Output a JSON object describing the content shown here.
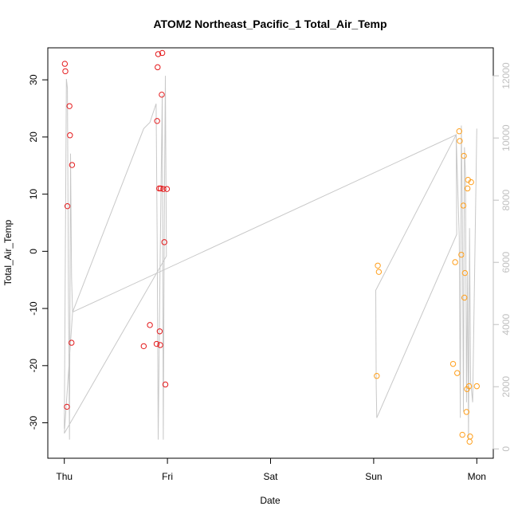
{
  "chart_data": {
    "type": "scatter",
    "title": "ATOM2 Northeast_Pacific_1 Total_Air_Temp",
    "xlabel": "Date",
    "ylabel": "Total_Air_Temp",
    "x_axis": {
      "unit": "days since Thu 00:00",
      "ticks": [
        {
          "value": 0,
          "label": "Thu"
        },
        {
          "value": 1,
          "label": "Fri"
        },
        {
          "value": 2,
          "label": "Sat"
        },
        {
          "value": 3,
          "label": "Sun"
        },
        {
          "value": 4,
          "label": "Mon"
        }
      ],
      "range": [
        -0.16,
        4.16
      ]
    },
    "y_axis_left": {
      "ticks": [
        -30,
        -20,
        -10,
        0,
        10,
        20,
        30
      ],
      "tick_labels": [
        "-30",
        "-20",
        "-10",
        "0",
        "10",
        "20",
        "30"
      ],
      "range": [
        -36.2,
        35.6
      ]
    },
    "y_axis_right": {
      "ticks": [
        0,
        2000,
        4000,
        6000,
        8000,
        10000,
        12000
      ],
      "tick_labels": [
        "0",
        "2000",
        "4000",
        "6000",
        "8000",
        "10000",
        "12000"
      ],
      "range": [
        -300,
        12900
      ],
      "color": "#c0c0c0"
    },
    "grid": false,
    "series": [
      {
        "color": "#e41a1c",
        "marker": "open-circle",
        "points": [
          [
            0.005,
            32.8
          ],
          [
            0.01,
            31.5
          ],
          [
            0.025,
            -27.2
          ],
          [
            0.03,
            7.9
          ],
          [
            0.05,
            25.4
          ],
          [
            0.055,
            20.3
          ],
          [
            0.07,
            -16.0
          ],
          [
            0.075,
            15.1
          ],
          [
            0.77,
            -16.6
          ],
          [
            0.83,
            -12.9
          ],
          [
            0.895,
            -16.2
          ],
          [
            0.9,
            22.8
          ],
          [
            0.905,
            32.2
          ],
          [
            0.91,
            34.5
          ],
          [
            0.92,
            11.0
          ],
          [
            0.925,
            -14.0
          ],
          [
            0.93,
            -16.4
          ],
          [
            0.935,
            11.0
          ],
          [
            0.945,
            27.4
          ],
          [
            0.95,
            34.7
          ],
          [
            0.96,
            10.9
          ],
          [
            0.97,
            1.6
          ],
          [
            0.98,
            -23.3
          ],
          [
            0.995,
            10.9
          ]
        ]
      },
      {
        "color": "#ff9f1c",
        "marker": "open-circle",
        "points": [
          [
            3.03,
            -21.8
          ],
          [
            3.04,
            -2.5
          ],
          [
            3.05,
            -3.6
          ],
          [
            3.77,
            -19.7
          ],
          [
            3.79,
            -1.9
          ],
          [
            3.81,
            -21.3
          ],
          [
            3.83,
            21.0
          ],
          [
            3.835,
            19.3
          ],
          [
            3.85,
            -0.6
          ],
          [
            3.86,
            -32.1
          ],
          [
            3.87,
            8.0
          ],
          [
            3.875,
            16.7
          ],
          [
            3.88,
            -8.1
          ],
          [
            3.885,
            -3.8
          ],
          [
            3.9,
            -28.1
          ],
          [
            3.905,
            -24.1
          ],
          [
            3.91,
            11.0
          ],
          [
            3.915,
            12.5
          ],
          [
            3.925,
            -23.6
          ],
          [
            3.93,
            -33.3
          ],
          [
            3.935,
            -32.4
          ],
          [
            3.945,
            12.1
          ],
          [
            4.0,
            -23.6
          ]
        ]
      },
      {
        "color": "#c8c8c8",
        "marker": "line",
        "axis": "right",
        "points": [
          [
            0.0,
            650
          ],
          [
            0.02,
            11900
          ],
          [
            0.03,
            11600
          ],
          [
            0.04,
            5000
          ],
          [
            0.05,
            300
          ],
          [
            0.06,
            9500
          ],
          [
            0.07,
            5500
          ],
          [
            0.08,
            4400
          ],
          [
            0.77,
            10300
          ],
          [
            0.83,
            10500
          ],
          [
            0.89,
            11100
          ],
          [
            0.9,
            6800
          ],
          [
            0.91,
            300
          ],
          [
            0.93,
            6200
          ],
          [
            0.95,
            11400
          ],
          [
            0.96,
            300
          ],
          [
            0.97,
            7500
          ],
          [
            0.98,
            12000
          ],
          [
            0.99,
            6200
          ],
          [
            0.0,
            500
          ],
          [
            0.99,
            6200
          ],
          [
            0.0,
            500
          ],
          [
            0.08,
            4400
          ],
          [
            3.8,
            10100
          ],
          [
            3.805,
            6900
          ],
          [
            3.03,
            1000
          ],
          [
            3.025,
            2000
          ],
          [
            3.02,
            5100
          ],
          [
            3.8,
            10100
          ],
          [
            3.83,
            6800
          ],
          [
            3.84,
            1000
          ],
          [
            3.85,
            10400
          ],
          [
            3.86,
            7500
          ],
          [
            3.87,
            1200
          ],
          [
            3.88,
            9700
          ],
          [
            3.89,
            8800
          ],
          [
            3.9,
            1500
          ],
          [
            3.91,
            5600
          ],
          [
            3.92,
            300
          ],
          [
            3.93,
            7100
          ],
          [
            3.94,
            2200
          ],
          [
            3.96,
            1500
          ],
          [
            4.0,
            10300
          ]
        ]
      }
    ]
  }
}
